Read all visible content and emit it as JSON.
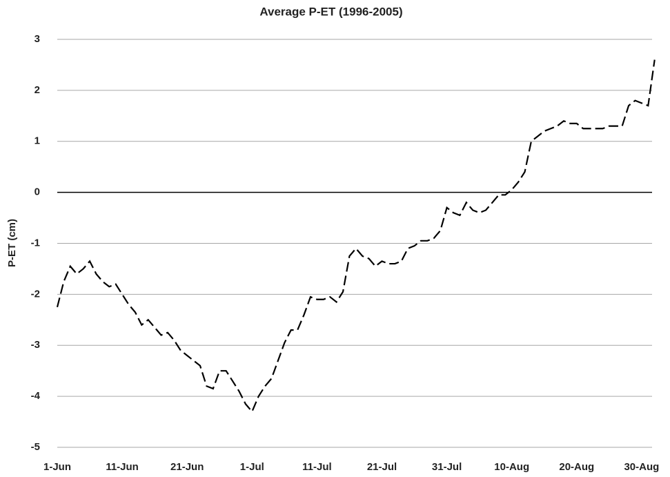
{
  "chart_data": {
    "type": "line",
    "title": "Average P-ET (1996-2005)",
    "y_label": "P-ET (cm)",
    "categories": [
      "1-Jun",
      null,
      null,
      null,
      null,
      null,
      null,
      null,
      null,
      null,
      "11-Jun",
      null,
      null,
      null,
      null,
      null,
      null,
      null,
      null,
      null,
      "21-Jun",
      null,
      null,
      null,
      null,
      null,
      null,
      null,
      null,
      null,
      "1-Jul",
      null,
      null,
      null,
      null,
      null,
      null,
      null,
      null,
      null,
      "11-Jul",
      null,
      null,
      null,
      null,
      null,
      null,
      null,
      null,
      null,
      "21-Jul",
      null,
      null,
      null,
      null,
      null,
      null,
      null,
      null,
      null,
      "31-Jul",
      null,
      null,
      null,
      null,
      null,
      null,
      null,
      null,
      null,
      "10-Aug",
      null,
      null,
      null,
      null,
      null,
      null,
      null,
      null,
      null,
      "20-Aug",
      null,
      null,
      null,
      null,
      null,
      null,
      null,
      null,
      null,
      "30-Aug",
      null,
      null
    ],
    "series": [
      {
        "name": "P-ET",
        "color": "#000000",
        "values": [
          -2.25,
          -1.75,
          -1.45,
          -1.6,
          -1.5,
          -1.35,
          -1.6,
          -1.75,
          -1.85,
          -1.8,
          -2.0,
          -2.2,
          -2.35,
          -2.6,
          -2.5,
          -2.65,
          -2.8,
          -2.75,
          -2.9,
          -3.1,
          -3.2,
          -3.3,
          -3.4,
          -3.8,
          -3.85,
          -3.5,
          -3.5,
          -3.7,
          -3.9,
          -4.15,
          -4.3,
          -4.0,
          -3.8,
          -3.65,
          -3.3,
          -2.95,
          -2.7,
          -2.7,
          -2.4,
          -2.05,
          -2.1,
          -2.1,
          -2.05,
          -2.15,
          -1.95,
          -1.25,
          -1.1,
          -1.25,
          -1.3,
          -1.45,
          -1.35,
          -1.4,
          -1.4,
          -1.35,
          -1.1,
          -1.05,
          -0.95,
          -0.95,
          -0.9,
          -0.75,
          -0.3,
          -0.4,
          -0.45,
          -0.2,
          -0.35,
          -0.4,
          -0.35,
          -0.2,
          -0.05,
          -0.05,
          0.05,
          0.2,
          0.4,
          1.0,
          1.1,
          1.2,
          1.25,
          1.3,
          1.4,
          1.35,
          1.35,
          1.25,
          1.25,
          1.25,
          1.25,
          1.3,
          1.3,
          1.3,
          1.7,
          1.8,
          1.75,
          1.7,
          2.6
        ]
      }
    ],
    "ylim": [
      -5,
      3
    ],
    "yticks": [
      -5,
      -4,
      -3,
      -2,
      -1,
      0,
      1,
      2,
      3
    ],
    "grid": true,
    "dashed": true
  }
}
